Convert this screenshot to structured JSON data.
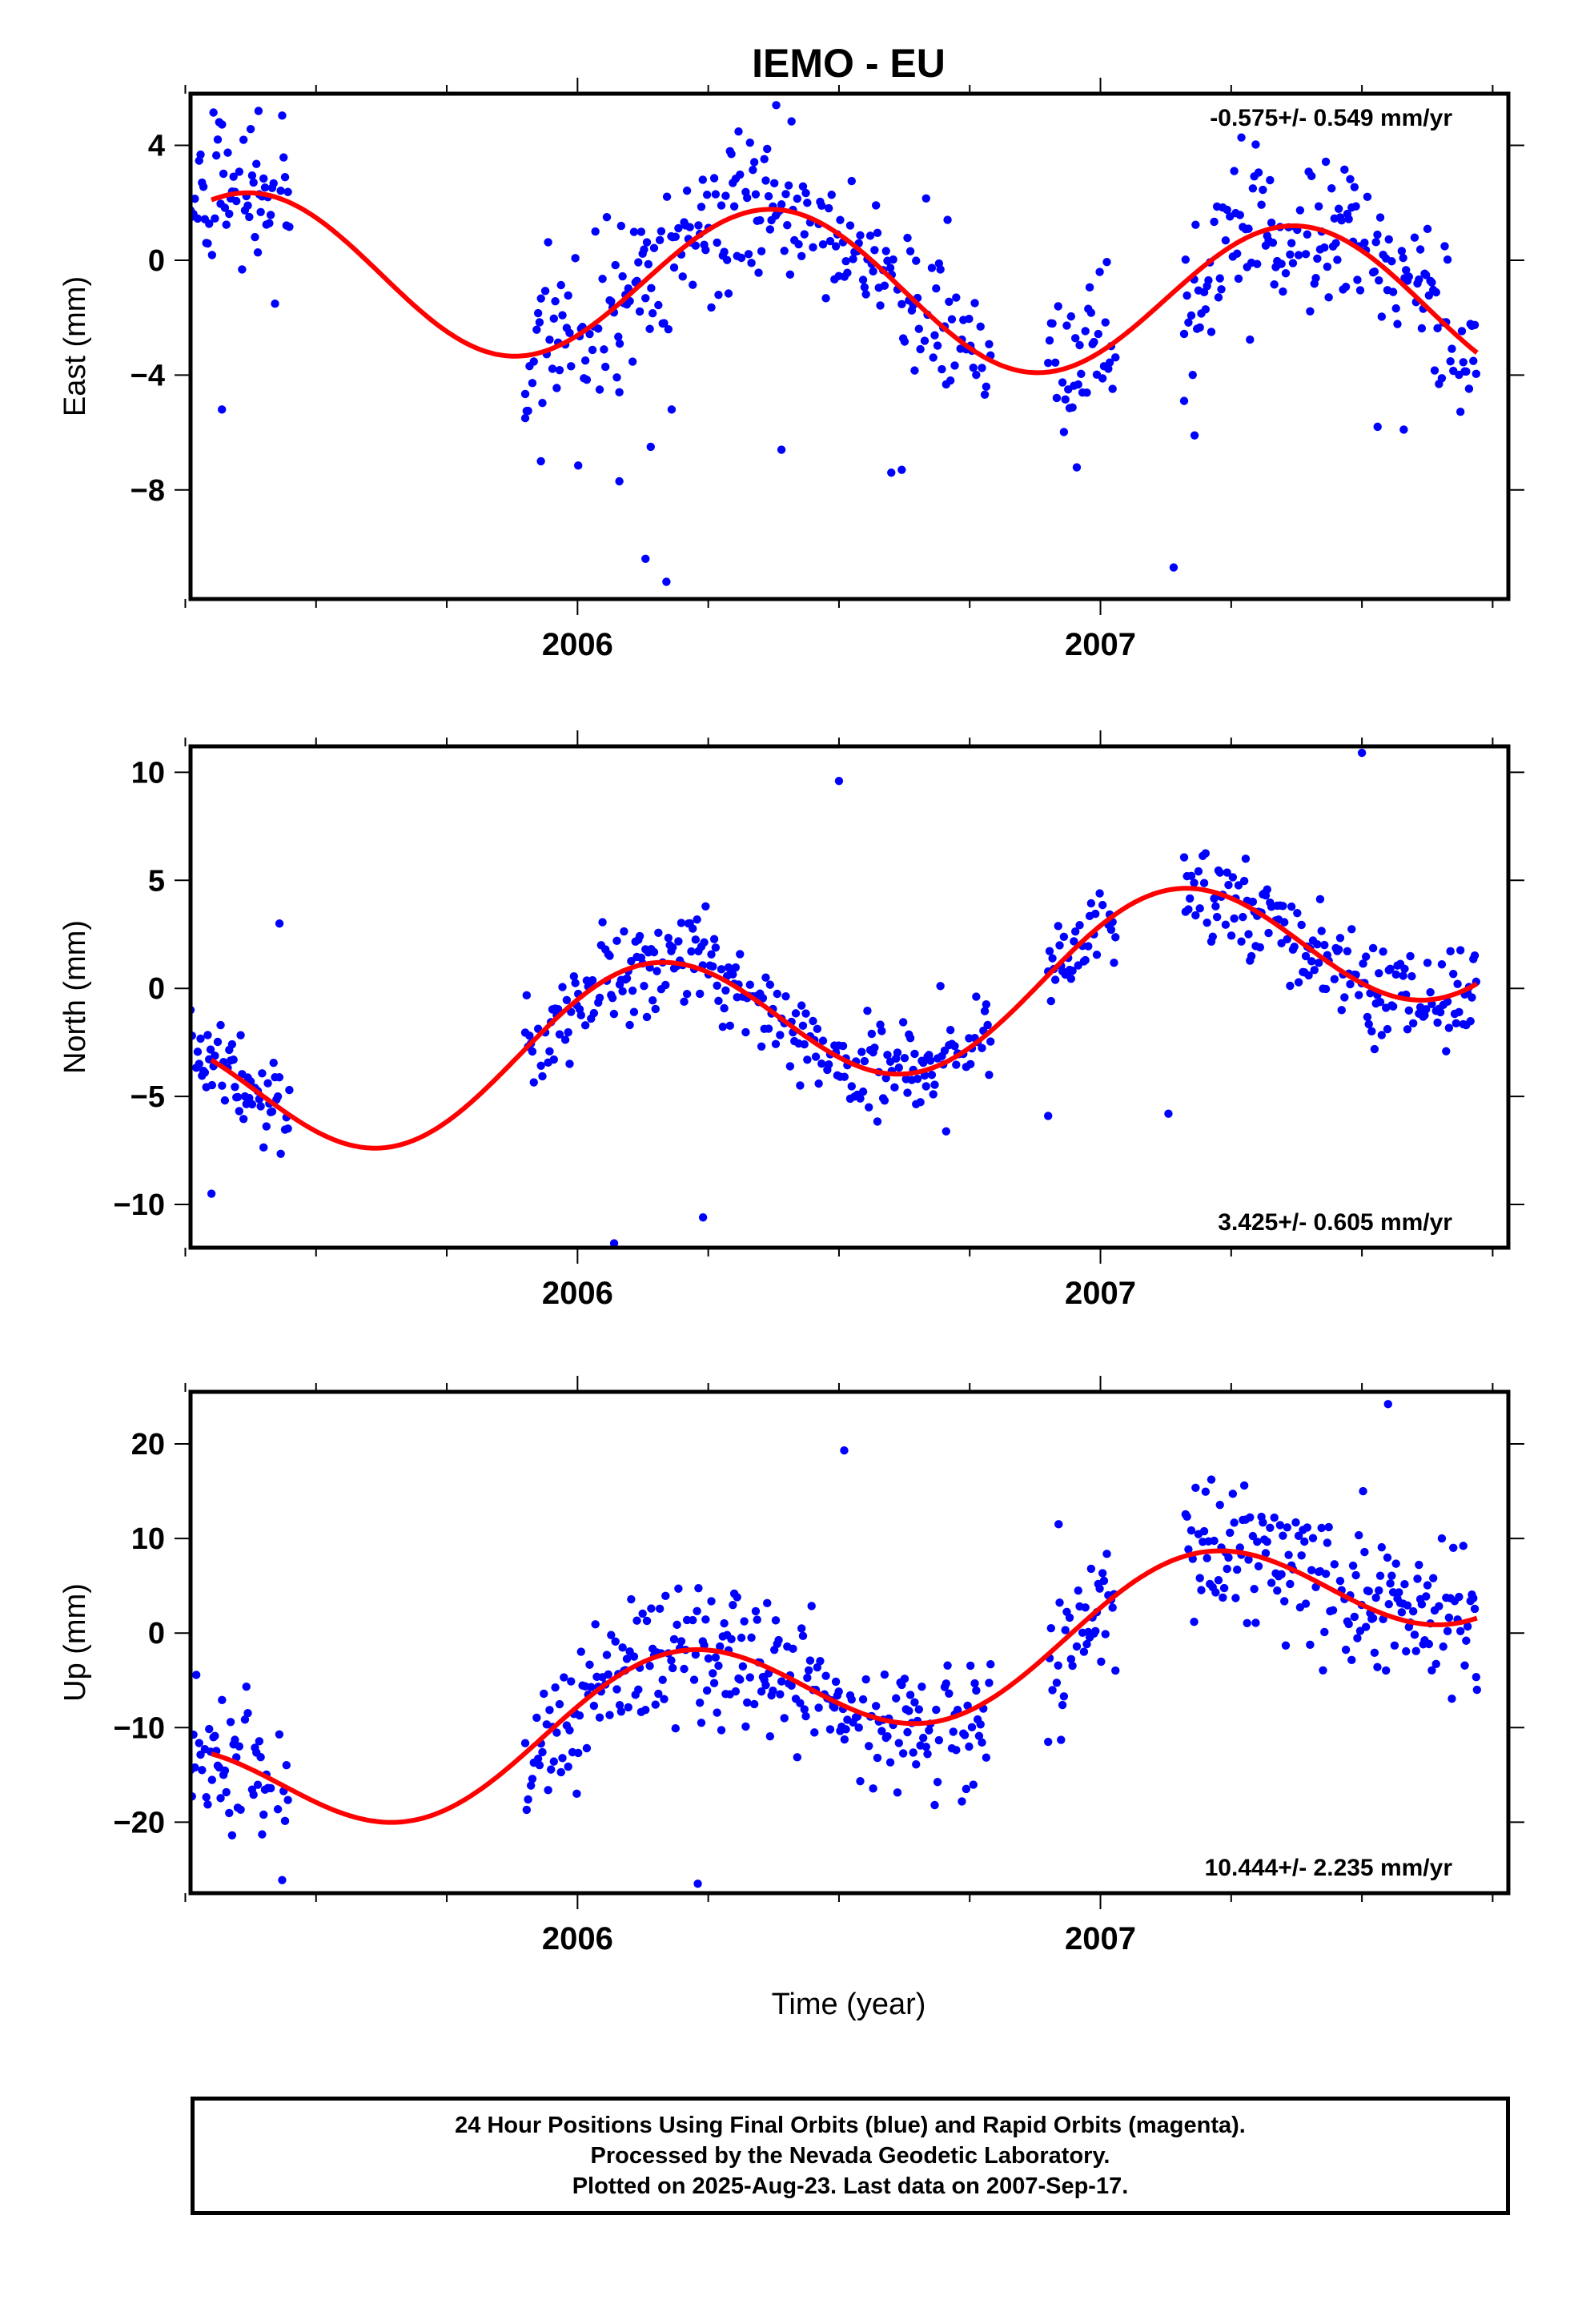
{
  "title": "IEMO - EU",
  "xlabel": "Time (year)",
  "caption": [
    "24 Hour Positions Using Final Orbits (blue) and Rapid Orbits (magenta).",
    "Processed by the Nevada Geodetic Laboratory.",
    "Plotted on 2025-Aug-23. Last data on 2007-Sep-17."
  ],
  "colors": {
    "points": "#0000ff",
    "fit": "#ff0000",
    "frame": "#000000"
  },
  "chart_data": [
    {
      "type": "scatter",
      "component": "east",
      "ylabel": "East (mm)",
      "rate_label": "-0.575+/- 0.549 mm/yr",
      "rate_position": "top-right",
      "xlim": [
        2005.26,
        2007.78
      ],
      "ylim": [
        -11.8,
        5.8
      ],
      "xticks": [
        2006,
        2007
      ],
      "yticks": [
        4,
        0,
        -4,
        -8
      ],
      "ytick_labels": [
        "4",
        "0",
        "−4",
        "−8"
      ],
      "fit": {
        "rate": -0.575,
        "offset": -1.0,
        "annual_amp": 2.7,
        "annual_phase": 5.5
      },
      "segments": [
        [
          2005.26,
          2005.45
        ],
        [
          2005.9,
          2006.79
        ],
        [
          2006.9,
          2007.03
        ],
        [
          2007.16,
          2007.72
        ]
      ],
      "noise": 1.3,
      "outliers": [
        [
          2005.32,
          -5.2
        ],
        [
          2005.9,
          -5.5
        ],
        [
          2005.93,
          -7.0
        ],
        [
          2006.08,
          -4.6
        ],
        [
          2006.08,
          -7.7
        ],
        [
          2006.13,
          -10.4
        ],
        [
          2006.14,
          -6.5
        ],
        [
          2006.17,
          -11.2
        ],
        [
          2006.18,
          -5.2
        ],
        [
          2006.39,
          -6.6
        ],
        [
          2006.62,
          -7.3
        ],
        [
          2006.6,
          -7.4
        ],
        [
          2007.14,
          -10.7
        ],
        [
          2007.16,
          -4.9
        ],
        [
          2007.18,
          -6.1
        ],
        [
          2007.53,
          -5.8
        ],
        [
          2007.58,
          -5.9
        ],
        [
          2006.38,
          5.4
        ],
        [
          2005.39,
          5.2
        ]
      ]
    },
    {
      "type": "scatter",
      "component": "north",
      "ylabel": "North (mm)",
      "rate_label": "3.425+/- 0.605 mm/yr",
      "rate_position": "bottom-right",
      "xlim": [
        2005.26,
        2007.78
      ],
      "ylim": [
        -12.0,
        11.2
      ],
      "xticks": [
        2006,
        2007
      ],
      "yticks": [
        10,
        5,
        0,
        -5,
        -10
      ],
      "ytick_labels": [
        "10",
        "5",
        "0",
        "−5",
        "−10"
      ],
      "fit": {
        "rate": 3.425,
        "offset": -1.0,
        "annual_amp": 3.4,
        "annual_phase": 0.7
      },
      "segments": [
        [
          2005.26,
          2005.45
        ],
        [
          2005.9,
          2006.79
        ],
        [
          2006.9,
          2007.03
        ],
        [
          2007.16,
          2007.72
        ]
      ],
      "noise": 1.1,
      "outliers": [
        [
          2005.3,
          -9.5
        ],
        [
          2006.07,
          -11.8
        ],
        [
          2006.24,
          -10.6
        ],
        [
          2006.5,
          9.6
        ],
        [
          2007.5,
          10.9
        ],
        [
          2007.13,
          -5.8
        ],
        [
          2005.43,
          3.0
        ],
        [
          2006.9,
          -5.9
        ]
      ]
    },
    {
      "type": "scatter",
      "component": "up",
      "ylabel": "Up (mm)",
      "rate_label": "10.444+/- 2.235 mm/yr",
      "rate_position": "bottom-right",
      "xlim": [
        2005.26,
        2007.78
      ],
      "ylim": [
        -27.5,
        25.5
      ],
      "xticks": [
        2006,
        2007
      ],
      "yticks": [
        20,
        10,
        0,
        -10,
        -20
      ],
      "ytick_labels": [
        "20",
        "10",
        "0",
        "−10",
        "−20"
      ],
      "fit": {
        "rate": 10.444,
        "offset": -5.0,
        "annual_amp": 6.3,
        "annual_phase": 0.4
      },
      "segments": [
        [
          2005.26,
          2005.45
        ],
        [
          2005.9,
          2006.79
        ],
        [
          2006.9,
          2007.03
        ],
        [
          2007.16,
          2007.72
        ]
      ],
      "noise": 3.8,
      "outliers": [
        [
          2006.23,
          -26.5
        ],
        [
          2006.9,
          -11.5
        ],
        [
          2007.72,
          -6.0
        ],
        [
          2007.55,
          24.2
        ],
        [
          2006.51,
          19.3
        ],
        [
          2006.92,
          11.5
        ]
      ]
    }
  ]
}
